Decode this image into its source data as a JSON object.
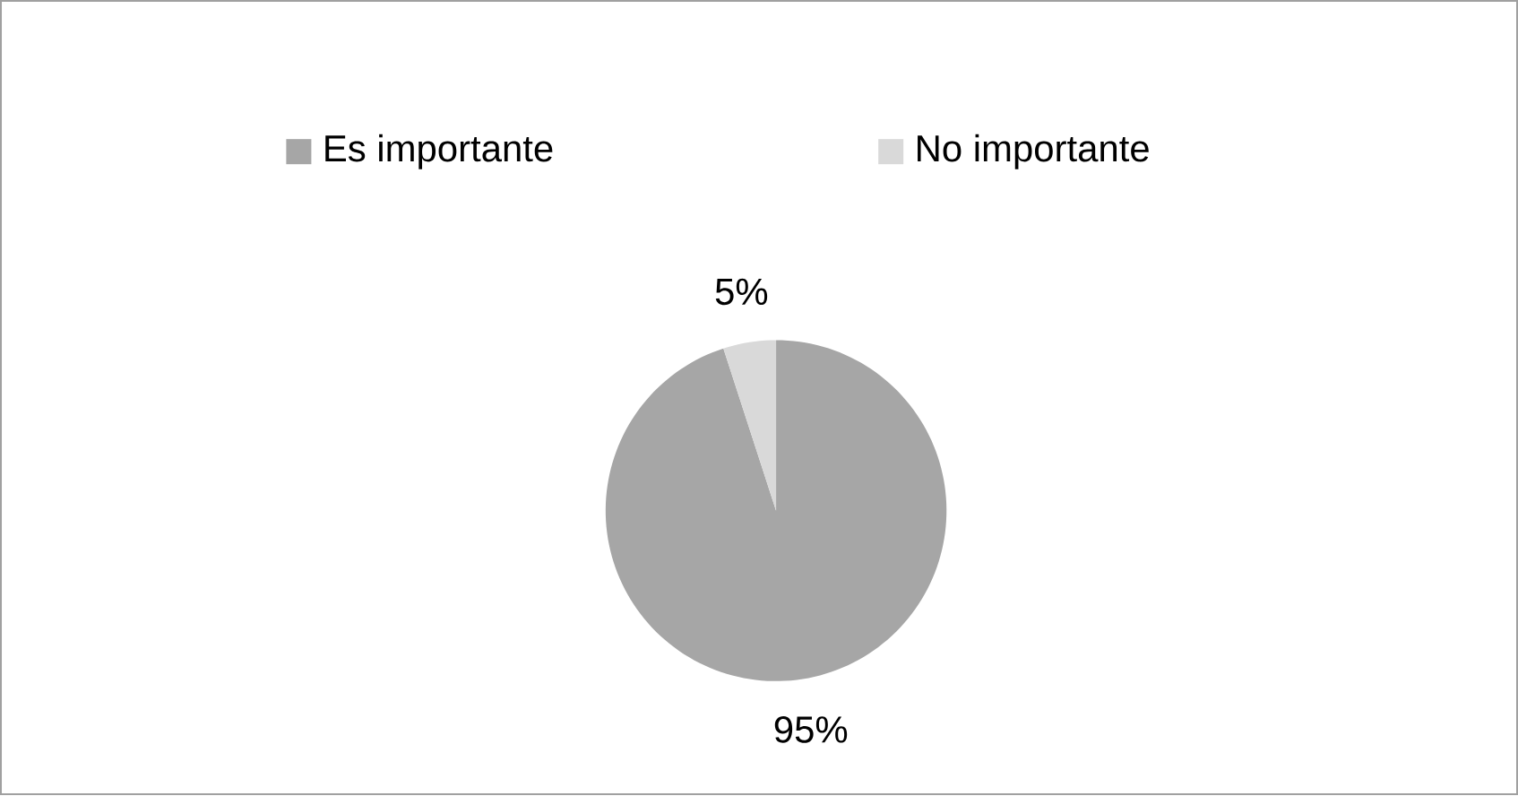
{
  "chart_data": {
    "type": "pie",
    "categories": [
      "Es importante",
      "No importante"
    ],
    "values": [
      95,
      5
    ],
    "colors": [
      "#a6a6a6",
      "#d9d9d9"
    ],
    "value_labels": [
      "95%",
      "5%"
    ],
    "legend": "top"
  }
}
